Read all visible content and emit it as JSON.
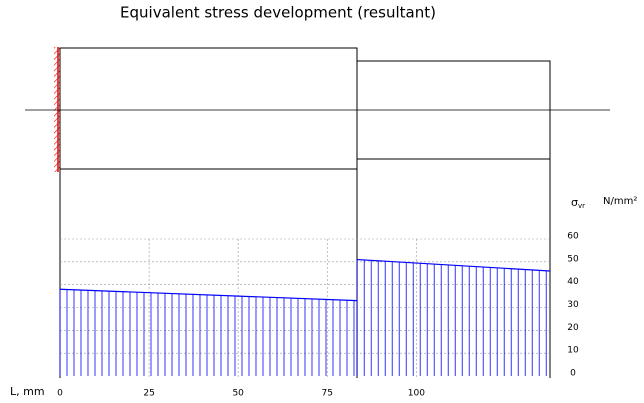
{
  "chart_data": {
    "type": "stress",
    "title": "Equivalent stress development (resultant)",
    "x_label": "L, mm",
    "y_label_symbol": "σ",
    "y_label_subscript": "vr",
    "y_unit": "N/mm²",
    "color": "#0000ff",
    "xlim": [
      0,
      137.5
    ],
    "ylim": [
      0,
      60
    ],
    "xticks": [
      0,
      25,
      50,
      75,
      100
    ],
    "yticks": [
      0,
      10,
      20,
      30,
      40,
      50,
      60
    ],
    "grid": true,
    "segments": [
      {
        "x": [
          0,
          83.4
        ],
        "values": [
          38,
          33
        ]
      },
      {
        "x": [
          83.4,
          137.5
        ],
        "values": [
          51,
          46
        ]
      }
    ]
  }
}
